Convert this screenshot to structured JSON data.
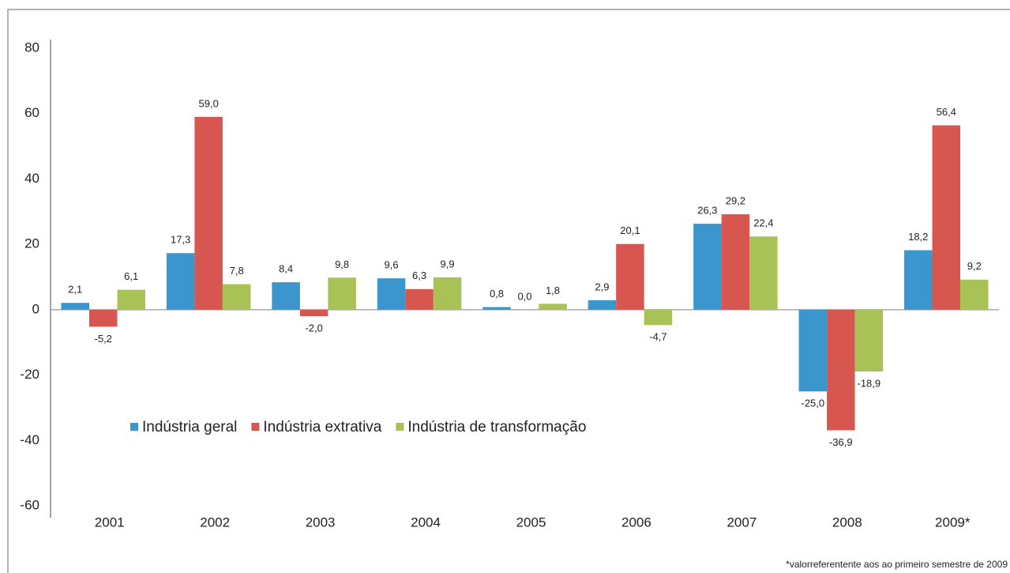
{
  "chart_data": {
    "type": "bar",
    "categories": [
      "2001",
      "2002",
      "2003",
      "2004",
      "2005",
      "2006",
      "2007",
      "2008",
      "2009*"
    ],
    "series": [
      {
        "name": "Indústria geral",
        "color": "#3a96cc",
        "values": [
          2.1,
          17.3,
          8.4,
          9.6,
          0.8,
          2.9,
          26.3,
          -25.0,
          18.2
        ],
        "value_labels": [
          "2,1",
          "17,3",
          "8,4",
          "9,6",
          "0,8",
          "2,9",
          "26,3",
          "-25,0",
          "18,2"
        ]
      },
      {
        "name": "Indústria extrativa",
        "color": "#d85650",
        "values": [
          -5.2,
          59.0,
          -2.0,
          6.3,
          0.0,
          20.1,
          29.2,
          -36.9,
          56.4
        ],
        "value_labels": [
          "-5,2",
          "59,0",
          "-2,0",
          "6,3",
          "0,0",
          "20,1",
          "29,2",
          "-36,9",
          "56,4"
        ]
      },
      {
        "name": "Indústria de transformação",
        "color": "#a8c256",
        "values": [
          6.1,
          7.8,
          9.8,
          9.9,
          1.8,
          -4.7,
          22.4,
          -18.9,
          9.2
        ],
        "value_labels": [
          "6,1",
          "7,8",
          "9,8",
          "9,9",
          "1,8",
          "-4,7",
          "22,4",
          "-18,9",
          "9,2"
        ]
      }
    ],
    "ylim": [
      -60,
      80
    ],
    "yticks": [
      -60,
      -40,
      -20,
      0,
      20,
      40,
      60,
      80
    ],
    "legend": "center-left",
    "footnote": "*valorreferentente aos ao primeiro semestre de 2009"
  }
}
